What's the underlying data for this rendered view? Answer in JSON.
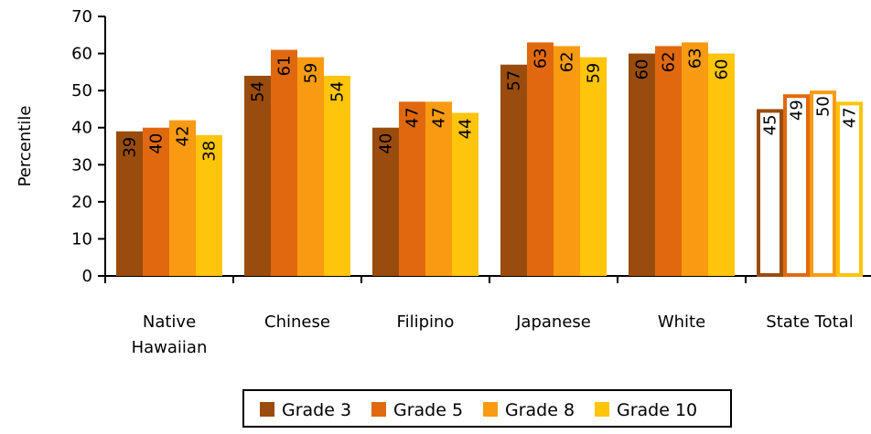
{
  "chart_data": {
    "type": "bar",
    "categories": [
      "Native Hawaiian",
      "Chinese",
      "Filipino",
      "Japanese",
      "White",
      "State Total"
    ],
    "category_lines": [
      [
        "Native",
        "Hawaiian"
      ],
      [
        "Chinese"
      ],
      [
        "Filipino"
      ],
      [
        "Japanese"
      ],
      [
        "White"
      ],
      [
        "State Total"
      ]
    ],
    "series": [
      {
        "name": "Grade 3",
        "color": "#994C0E",
        "values": [
          39,
          54,
          40,
          57,
          60,
          45
        ]
      },
      {
        "name": "Grade 5",
        "color": "#E0690F",
        "values": [
          40,
          61,
          47,
          63,
          62,
          49
        ]
      },
      {
        "name": "Grade 8",
        "color": "#F99B12",
        "values": [
          42,
          59,
          47,
          62,
          63,
          50
        ]
      },
      {
        "name": "Grade 10",
        "color": "#FFC40C",
        "values": [
          38,
          54,
          44,
          59,
          60,
          47
        ]
      }
    ],
    "outlined_categories": [
      "State Total"
    ],
    "ylabel": "Percentile",
    "xlabel": "",
    "ylim": [
      0,
      70
    ],
    "yticks": [
      0,
      10,
      20,
      30,
      40,
      50,
      60,
      70
    ],
    "grid": false,
    "legend_position": "bottom",
    "data_labels_rotated": true
  }
}
